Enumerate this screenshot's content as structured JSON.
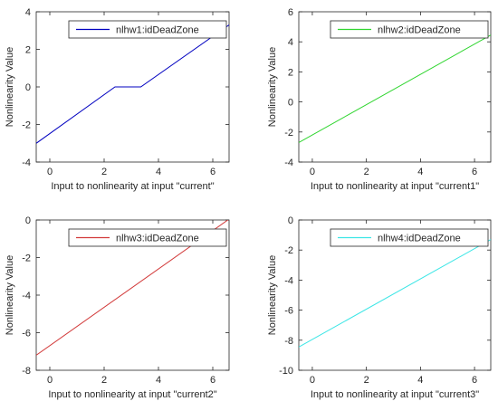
{
  "chart_data": [
    {
      "type": "line",
      "xlabel": "Input to nonlinearity at input \"current\"",
      "ylabel": "Nonlinearity Value",
      "xlim": [
        -0.5,
        6.6
      ],
      "ylim": [
        -4,
        4
      ],
      "xticks": [
        "0",
        "2",
        "4",
        "6"
      ],
      "xtick_values": [
        0,
        2,
        4,
        6
      ],
      "yticks": [
        "-4",
        "-2",
        "0",
        "2",
        "4"
      ],
      "ytick_values": [
        -4,
        -2,
        0,
        2,
        4
      ],
      "legend": "top-right",
      "grid": false,
      "series": [
        {
          "name": "nlhw1:idDeadZone",
          "color": "#0000c0",
          "x": [
            -0.5,
            2.4,
            3.35,
            6.6
          ],
          "y": [
            -3.0,
            0.0,
            0.0,
            3.3
          ]
        }
      ]
    },
    {
      "type": "line",
      "xlabel": "Input to nonlinearity at input \"current1\"",
      "ylabel": "Nonlinearity Value",
      "xlim": [
        -0.5,
        6.6
      ],
      "ylim": [
        -4,
        6
      ],
      "xticks": [
        "0",
        "2",
        "4",
        "6"
      ],
      "xtick_values": [
        0,
        2,
        4,
        6
      ],
      "yticks": [
        "-4",
        "-2",
        "0",
        "2",
        "4",
        "6"
      ],
      "ytick_values": [
        -4,
        -2,
        0,
        2,
        4,
        6
      ],
      "legend": "top-right",
      "grid": false,
      "series": [
        {
          "name": "nlhw2:idDeadZone",
          "color": "#2fd52f",
          "x": [
            -0.5,
            6.6
          ],
          "y": [
            -2.7,
            4.45
          ]
        }
      ]
    },
    {
      "type": "line",
      "xlabel": "Input to nonlinearity at input \"current2\"",
      "ylabel": "Nonlinearity Value",
      "xlim": [
        -0.5,
        6.6
      ],
      "ylim": [
        -8,
        0
      ],
      "xticks": [
        "0",
        "2",
        "4",
        "6"
      ],
      "xtick_values": [
        0,
        2,
        4,
        6
      ],
      "yticks": [
        "-8",
        "-6",
        "-4",
        "-2",
        "0"
      ],
      "ytick_values": [
        -8,
        -6,
        -4,
        -2,
        0
      ],
      "legend": "top-right",
      "grid": false,
      "series": [
        {
          "name": "nlhw3:idDeadZone",
          "color": "#d23a3a",
          "x": [
            -0.5,
            6.6
          ],
          "y": [
            -7.2,
            0.05
          ]
        }
      ]
    },
    {
      "type": "line",
      "xlabel": "Input to nonlinearity at input \"current3\"",
      "ylabel": "Nonlinearity Value",
      "xlim": [
        -0.5,
        6.6
      ],
      "ylim": [
        -10,
        0
      ],
      "xticks": [
        "0",
        "2",
        "4",
        "6"
      ],
      "xtick_values": [
        0,
        2,
        4,
        6
      ],
      "yticks": [
        "-10",
        "-8",
        "-6",
        "-4",
        "-2",
        "0"
      ],
      "ytick_values": [
        -10,
        -8,
        -6,
        -4,
        -2,
        0
      ],
      "legend": "top-right",
      "grid": false,
      "series": [
        {
          "name": "nlhw4:idDeadZone",
          "color": "#3ce6e6",
          "x": [
            -0.5,
            6.6
          ],
          "y": [
            -8.45,
            -1.3
          ]
        }
      ]
    }
  ]
}
